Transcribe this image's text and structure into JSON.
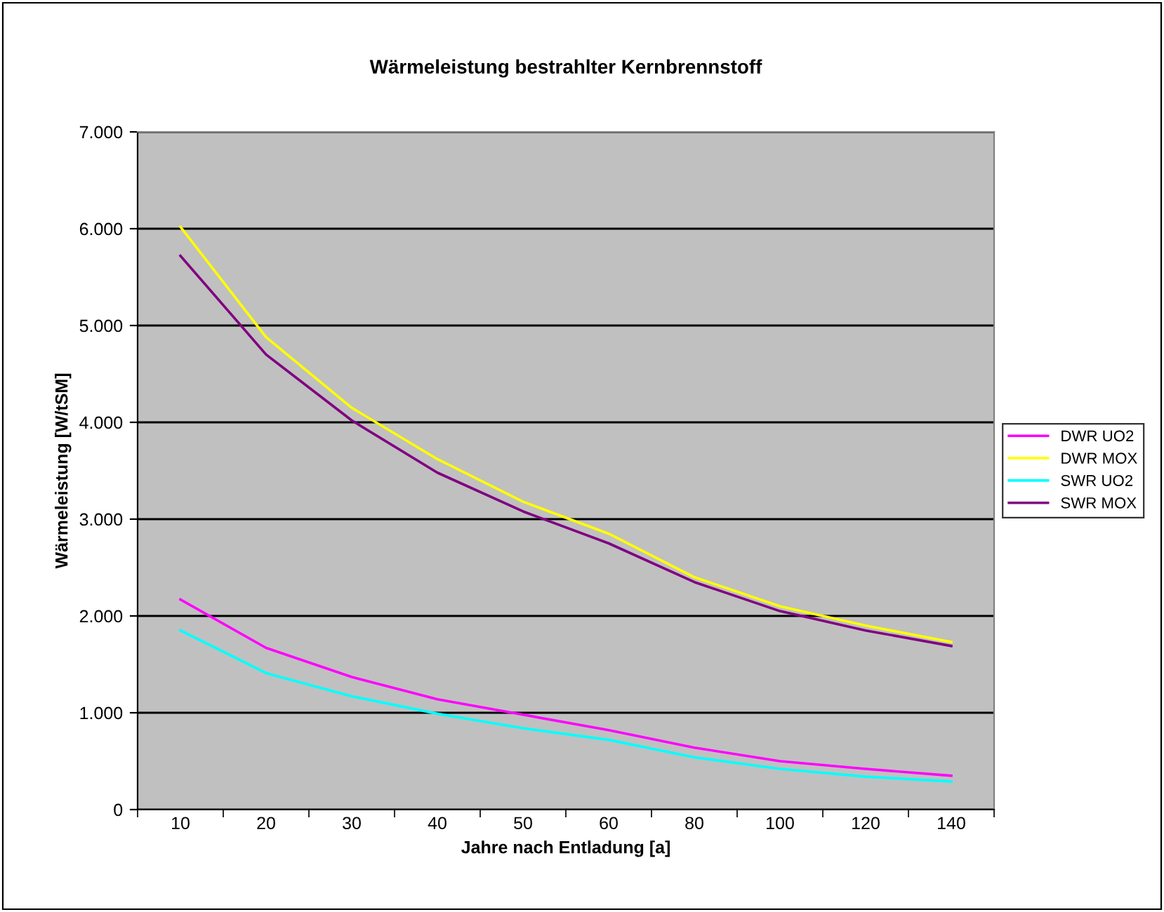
{
  "chart_data": {
    "type": "line",
    "title": "Wärmeleistung bestrahlter Kernbrennstoff",
    "xlabel": "Jahre nach Entladung [a]",
    "ylabel": "Wärmeleistung [W/tSM]",
    "categories": [
      "10",
      "20",
      "30",
      "40",
      "50",
      "60",
      "80",
      "100",
      "120",
      "140"
    ],
    "ylim": [
      0,
      7000
    ],
    "yticks": [
      0,
      {
        "value": 1000,
        "label": "1.000"
      },
      {
        "value": 2000,
        "label": "2.000"
      },
      {
        "value": 3000,
        "label": "3.000"
      },
      {
        "value": 4000,
        "label": "4.000"
      },
      {
        "value": 5000,
        "label": "5.000"
      },
      {
        "value": 6000,
        "label": "6.000"
      },
      {
        "value": 7000,
        "label": "7.000"
      }
    ],
    "grid": "y",
    "legend": "right",
    "marker": "none",
    "line_style": "solid",
    "series": [
      {
        "name": "DWR UO2",
        "color": "#ff00ff",
        "values": [
          2170,
          1670,
          1370,
          1140,
          980,
          820,
          640,
          500,
          420,
          350
        ]
      },
      {
        "name": "DWR MOX",
        "color": "#ffff00",
        "values": [
          6020,
          4880,
          4150,
          3620,
          3180,
          2850,
          2400,
          2100,
          1900,
          1730
        ]
      },
      {
        "name": "SWR UO2",
        "color": "#00ffff",
        "values": [
          1850,
          1410,
          1170,
          990,
          840,
          720,
          540,
          420,
          340,
          290
        ]
      },
      {
        "name": "SWR MOX",
        "color": "#800080",
        "values": [
          5720,
          4700,
          4020,
          3480,
          3080,
          2750,
          2350,
          2050,
          1850,
          1690
        ]
      }
    ]
  }
}
